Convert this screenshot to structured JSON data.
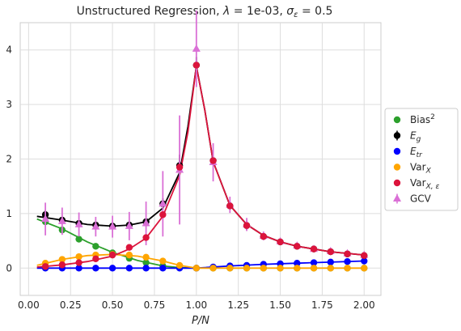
{
  "chart_data": {
    "type": "scatter",
    "title_parts": [
      "Unstructured Regression, ",
      "λ",
      " = 1e-03, ",
      "σ",
      "ε",
      " = 0.5"
    ],
    "xlabel": "P/N",
    "xlim": [
      -0.05,
      2.1
    ],
    "ylim": [
      -0.5,
      4.5
    ],
    "x_ticks": [
      "0.00",
      "0.25",
      "0.50",
      "0.75",
      "1.00",
      "1.25",
      "1.50",
      "1.75",
      "2.00"
    ],
    "y_ticks": [
      "0",
      "1",
      "2",
      "3",
      "4"
    ],
    "grid": true,
    "legend_position": "center-right",
    "x": [
      0.1,
      0.2,
      0.3,
      0.4,
      0.5,
      0.6,
      0.7,
      0.8,
      0.9,
      1.0,
      1.1,
      1.2,
      1.3,
      1.4,
      1.5,
      1.6,
      1.7,
      1.8,
      1.9,
      2.0
    ],
    "series": [
      {
        "key": "bias",
        "legend_main": "Bias",
        "legend_sup": "2",
        "color": "#2ca02c",
        "marker": "circle",
        "values": [
          0.85,
          0.7,
          0.53,
          0.4,
          0.28,
          0.18,
          0.1,
          0.04,
          0.01,
          0.0,
          0.0,
          0.0,
          0.0,
          0.0,
          0.0,
          0.0,
          0.0,
          0.0,
          0.0,
          0.0
        ],
        "curve": [
          [
            0.05,
            0.9
          ],
          [
            0.2,
            0.72
          ],
          [
            0.35,
            0.48
          ],
          [
            0.5,
            0.29
          ],
          [
            0.65,
            0.14
          ],
          [
            0.8,
            0.04
          ],
          [
            0.9,
            0.01
          ],
          [
            1.0,
            0.0
          ]
        ]
      },
      {
        "key": "eg",
        "legend_main": "E",
        "legend_sub": "g",
        "legend_italic": true,
        "color": "#000000",
        "marker": "circle",
        "errorbars": true,
        "values": [
          0.98,
          0.88,
          0.82,
          0.79,
          0.77,
          0.79,
          0.85,
          1.18,
          1.88,
          3.72,
          1.97,
          1.14,
          0.78,
          0.58,
          0.48,
          0.4,
          0.35,
          0.3,
          0.26,
          0.23
        ],
        "errors": [
          0.08,
          0.06,
          0.05,
          0.04,
          0.04,
          0.04,
          0.05,
          0.1,
          0.2,
          0.15,
          0.08,
          0.06,
          0.08,
          0.06,
          0.04,
          0.03,
          0.03,
          0.03,
          0.03,
          0.03
        ],
        "curve": [
          [
            0.05,
            0.95
          ],
          [
            0.2,
            0.88
          ],
          [
            0.35,
            0.8
          ],
          [
            0.5,
            0.77
          ],
          [
            0.6,
            0.79
          ],
          [
            0.7,
            0.85
          ],
          [
            0.8,
            1.1
          ],
          [
            0.9,
            1.75
          ],
          [
            0.95,
            2.6
          ],
          [
            1.0,
            3.7
          ],
          [
            1.05,
            2.9
          ],
          [
            1.1,
            1.95
          ],
          [
            1.2,
            1.15
          ],
          [
            1.3,
            0.8
          ],
          [
            1.4,
            0.6
          ],
          [
            1.5,
            0.48
          ],
          [
            1.6,
            0.4
          ],
          [
            1.7,
            0.35
          ],
          [
            1.8,
            0.3
          ],
          [
            1.9,
            0.27
          ],
          [
            2.0,
            0.24
          ]
        ]
      },
      {
        "key": "etr",
        "legend_main": "E",
        "legend_sub": "tr",
        "legend_italic": true,
        "color": "#0000ff",
        "marker": "circle",
        "values": [
          0.0,
          0.0,
          0.0,
          0.0,
          0.0,
          0.0,
          0.0,
          0.0,
          0.0,
          0.0,
          0.02,
          0.04,
          0.05,
          0.07,
          0.08,
          0.09,
          0.1,
          0.11,
          0.12,
          0.13
        ],
        "curve": [
          [
            0.05,
            0.0
          ],
          [
            1.0,
            0.0
          ],
          [
            1.2,
            0.04
          ],
          [
            1.4,
            0.07
          ],
          [
            1.6,
            0.09
          ],
          [
            1.8,
            0.11
          ],
          [
            2.0,
            0.13
          ]
        ]
      },
      {
        "key": "varx",
        "legend_main": "Var",
        "legend_sub": "X",
        "color": "#ffa500",
        "marker": "circle",
        "values": [
          0.09,
          0.16,
          0.21,
          0.24,
          0.25,
          0.24,
          0.2,
          0.13,
          0.05,
          0.0,
          0.0,
          0.0,
          0.0,
          0.0,
          0.0,
          0.0,
          0.0,
          0.0,
          0.0,
          0.0
        ],
        "curve": [
          [
            0.05,
            0.05
          ],
          [
            0.2,
            0.16
          ],
          [
            0.35,
            0.23
          ],
          [
            0.5,
            0.25
          ],
          [
            0.65,
            0.22
          ],
          [
            0.8,
            0.13
          ],
          [
            0.9,
            0.05
          ],
          [
            1.0,
            0.0
          ],
          [
            2.0,
            0.0
          ]
        ]
      },
      {
        "key": "varxe",
        "legend_main": "Var",
        "legend_sub": "X, ε",
        "color": "#dc143c",
        "marker": "circle",
        "values": [
          0.03,
          0.06,
          0.1,
          0.17,
          0.24,
          0.38,
          0.56,
          0.98,
          1.85,
          3.72,
          1.97,
          1.14,
          0.78,
          0.58,
          0.48,
          0.4,
          0.35,
          0.3,
          0.26,
          0.23
        ],
        "curve": [
          [
            0.05,
            0.02
          ],
          [
            0.2,
            0.06
          ],
          [
            0.35,
            0.12
          ],
          [
            0.5,
            0.22
          ],
          [
            0.6,
            0.35
          ],
          [
            0.7,
            0.55
          ],
          [
            0.8,
            0.95
          ],
          [
            0.9,
            1.7
          ],
          [
            0.95,
            2.5
          ],
          [
            1.0,
            3.7
          ],
          [
            1.05,
            2.9
          ],
          [
            1.1,
            1.95
          ],
          [
            1.2,
            1.15
          ],
          [
            1.3,
            0.8
          ],
          [
            1.4,
            0.6
          ],
          [
            1.5,
            0.48
          ],
          [
            1.6,
            0.4
          ],
          [
            1.7,
            0.35
          ],
          [
            1.8,
            0.3
          ],
          [
            1.9,
            0.27
          ],
          [
            2.0,
            0.24
          ]
        ]
      },
      {
        "key": "gcv",
        "legend_main": "GCV",
        "color": "#da70d6",
        "marker": "triangle",
        "errorbars": true,
        "values": [
          0.9,
          0.86,
          0.8,
          0.76,
          0.76,
          0.77,
          0.82,
          1.18,
          1.8,
          4.02,
          1.94,
          1.16,
          0.8,
          0.59,
          0.49,
          0.41,
          0.35,
          0.31,
          0.27,
          0.24
        ],
        "errors": [
          0.3,
          0.25,
          0.22,
          0.18,
          0.2,
          0.26,
          0.4,
          0.6,
          1.0,
          0.7,
          0.35,
          0.15,
          0.12,
          0.08,
          0.06,
          0.05,
          0.04,
          0.04,
          0.03,
          0.03
        ]
      }
    ]
  }
}
